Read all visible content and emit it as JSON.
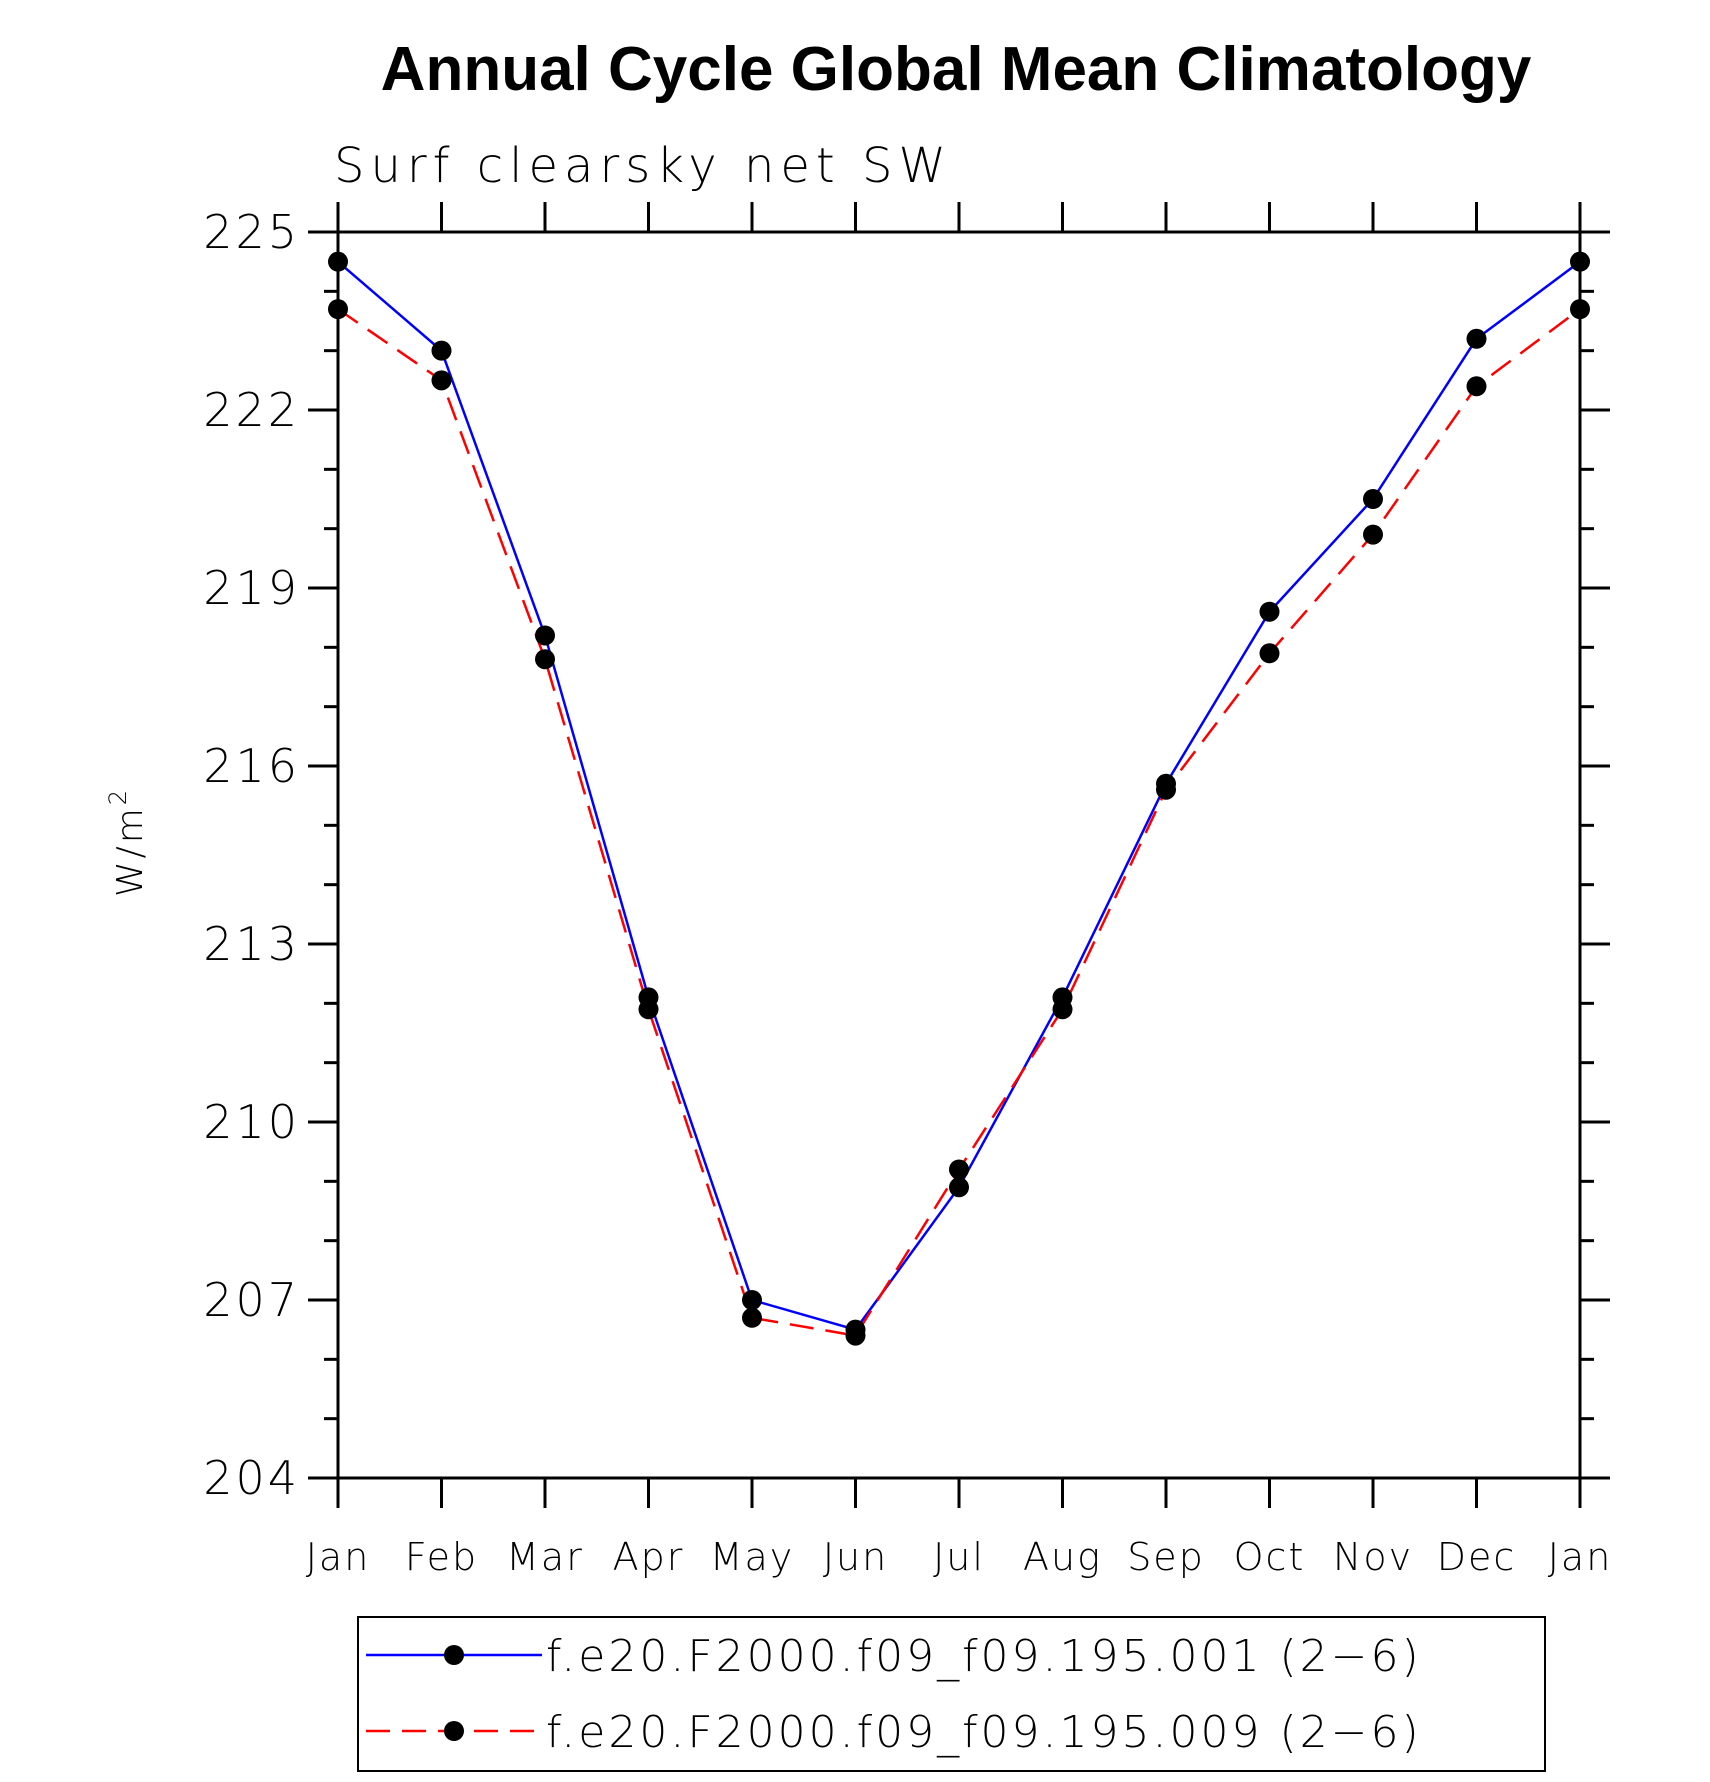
{
  "chart_data": {
    "type": "line",
    "title": "Annual Cycle Global Mean Climatology",
    "subtitle": "Surf clearsky net SW",
    "xlabel": "",
    "ylabel": "W/m",
    "ylabel_superscript": "2",
    "categories": [
      "Jan",
      "Feb",
      "Mar",
      "Apr",
      "May",
      "Jun",
      "Jul",
      "Aug",
      "Sep",
      "Oct",
      "Nov",
      "Dec",
      "Jan"
    ],
    "ylim": [
      204,
      225
    ],
    "yticks": [
      204,
      207,
      210,
      213,
      216,
      219,
      222,
      225
    ],
    "ytick_labels": [
      "204",
      "207",
      "210",
      "213",
      "216",
      "219",
      "222",
      "225"
    ],
    "y_minor_step": 1,
    "grid": false,
    "legend_position": "bottom",
    "series": [
      {
        "name": "f.e20.F2000.f09_f09.195.001 (2−6)",
        "color": "#0000ff",
        "line_style": "solid",
        "marker": "filled-circle",
        "values": [
          224.5,
          223.0,
          218.2,
          212.1,
          207.0,
          206.5,
          208.9,
          212.1,
          215.7,
          218.6,
          220.5,
          223.2,
          224.5
        ]
      },
      {
        "name": "f.e20.F2000.f09_f09.195.009 (2−6)",
        "color": "#ff0000",
        "line_style": "dashed",
        "marker": "filled-circle",
        "values": [
          223.7,
          222.5,
          217.8,
          211.9,
          206.7,
          206.4,
          209.2,
          211.9,
          215.6,
          217.9,
          219.9,
          222.4,
          223.7
        ]
      }
    ],
    "marker_color": "#000000",
    "frame_color": "#000000"
  }
}
